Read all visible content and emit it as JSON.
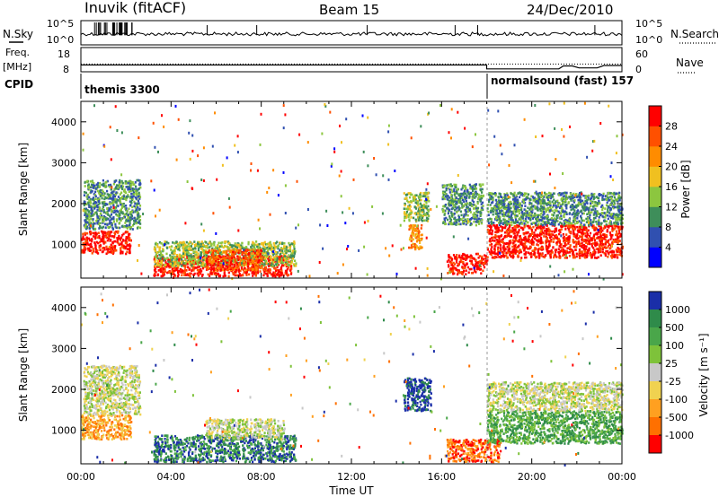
{
  "header": {
    "station": "Inuvik (fitACF)",
    "beam": "Beam 15",
    "date": "24/Dec/2010"
  },
  "left_labels": {
    "nsky": "N.Sky",
    "freq": "Freq.",
    "freq_unit": "[MHz]",
    "cpid": "CPID"
  },
  "right_labels": {
    "nsearch": "N.Search",
    "nave": "Nave"
  },
  "chart_data": [
    {
      "type": "line",
      "panel": "noise",
      "y_tick_labels": [
        "10^5",
        "10^0"
      ],
      "right_tick_labels": [
        "10^5",
        "10^0"
      ],
      "series": [
        {
          "name": "N.Sky",
          "style": "solid"
        },
        {
          "name": "N.Search",
          "style": "dotted"
        }
      ]
    },
    {
      "type": "line",
      "panel": "frequency",
      "y_ticks_left": [
        "18",
        "8"
      ],
      "y_ticks_right": [
        "60",
        "0"
      ],
      "series": [
        {
          "name": "Freq.",
          "style": "solid",
          "x": [
            0,
            18.0,
            18.0,
            21.2,
            21.4,
            21.8,
            22.1,
            22.9,
            23.2,
            24.0
          ],
          "y": [
            10.8,
            10.8,
            9.2,
            9.2,
            10.4,
            10.4,
            9.6,
            9.6,
            10.6,
            10.6
          ]
        },
        {
          "name": "Nave",
          "style": "dotted",
          "x": [
            0,
            24
          ],
          "y": [
            11.2,
            11.2
          ]
        }
      ],
      "ylim_left": [
        8,
        18
      ]
    },
    {
      "type": "table",
      "panel": "cpid",
      "segments": [
        {
          "label": "themis 3300",
          "start": 0,
          "end": 18.0
        },
        {
          "label": "normalsound (fast) 157",
          "start": 18.0,
          "end": 24.0
        }
      ]
    },
    {
      "type": "heatmap",
      "panel": "power",
      "ylabel": "Slant Range [km]",
      "xlim": [
        0,
        24
      ],
      "ylim": [
        180,
        4500
      ],
      "yticks": [
        "1000",
        "2000",
        "3000",
        "4000"
      ],
      "colorbar": {
        "label": "Power [dB]",
        "ticks": [
          "4",
          "8",
          "12",
          "16",
          "20",
          "24",
          "28"
        ],
        "colors": [
          "#0000ff",
          "#3050b0",
          "#3e8e5a",
          "#8cc63f",
          "#f0c020",
          "#ff8c00",
          "#ff5000",
          "#ff0000"
        ]
      },
      "regions": [
        {
          "t0": 0.0,
          "t1": 2.2,
          "r0": 800,
          "r1": 1350,
          "level": 7
        },
        {
          "t0": 0.1,
          "t1": 2.6,
          "r0": 1400,
          "r1": 2600,
          "level": 2
        },
        {
          "t0": 3.2,
          "t1": 9.3,
          "r0": 250,
          "r1": 750,
          "level": 7
        },
        {
          "t0": 3.2,
          "t1": 9.5,
          "r0": 500,
          "r1": 1100,
          "level": 3
        },
        {
          "t0": 5.5,
          "t1": 8.0,
          "r0": 400,
          "r1": 900,
          "level": 6
        },
        {
          "t0": 14.3,
          "t1": 15.4,
          "r0": 1600,
          "r1": 2300,
          "level": 3
        },
        {
          "t0": 14.5,
          "t1": 15.1,
          "r0": 900,
          "r1": 1500,
          "level": 5
        },
        {
          "t0": 16.2,
          "t1": 18.0,
          "r0": 300,
          "r1": 800,
          "level": 7
        },
        {
          "t0": 16.0,
          "t1": 17.8,
          "r0": 1500,
          "r1": 2500,
          "level": 2
        },
        {
          "t0": 18.0,
          "t1": 24.0,
          "r0": 700,
          "r1": 1500,
          "level": 7
        },
        {
          "t0": 18.0,
          "t1": 24.0,
          "r0": 1500,
          "r1": 2300,
          "level": 2
        }
      ]
    },
    {
      "type": "heatmap",
      "panel": "velocity",
      "ylabel": "Slant Range [km]",
      "xlabel": "Time UT",
      "xticks": [
        "00:00",
        "04:00",
        "08:00",
        "12:00",
        "16:00",
        "20:00",
        "00:00"
      ],
      "xlim": [
        0,
        24
      ],
      "ylim": [
        180,
        4500
      ],
      "yticks": [
        "1000",
        "2000",
        "3000",
        "4000"
      ],
      "colorbar": {
        "label": "Velocity [m s^-1]",
        "ticks": [
          "1000",
          "500",
          "100",
          "25",
          "-25",
          "-100",
          "-500",
          "-1000"
        ],
        "colors": [
          "#1a2ea8",
          "#2f8b4a",
          "#4aa64a",
          "#7ec23a",
          "#c8c8c8",
          "#f0d250",
          "#ffa020",
          "#ff7000",
          "#ff0000"
        ]
      },
      "regions": [
        {
          "t0": 0.0,
          "t1": 2.2,
          "r0": 800,
          "r1": 1400,
          "level": 6
        },
        {
          "t0": 0.1,
          "t1": 2.6,
          "r0": 1400,
          "r1": 2600,
          "level": 4
        },
        {
          "t0": 3.2,
          "t1": 9.5,
          "r0": 250,
          "r1": 900,
          "level": 1
        },
        {
          "t0": 5.5,
          "t1": 9.0,
          "r0": 800,
          "r1": 1300,
          "level": 4
        },
        {
          "t0": 14.3,
          "t1": 15.5,
          "r0": 1500,
          "r1": 2300,
          "level": 0
        },
        {
          "t0": 16.2,
          "t1": 18.6,
          "r0": 250,
          "r1": 800,
          "level": 7
        },
        {
          "t0": 18.0,
          "t1": 24.0,
          "r0": 700,
          "r1": 1500,
          "level": 2
        },
        {
          "t0": 18.0,
          "t1": 24.0,
          "r0": 1500,
          "r1": 2200,
          "level": 4
        }
      ]
    }
  ]
}
